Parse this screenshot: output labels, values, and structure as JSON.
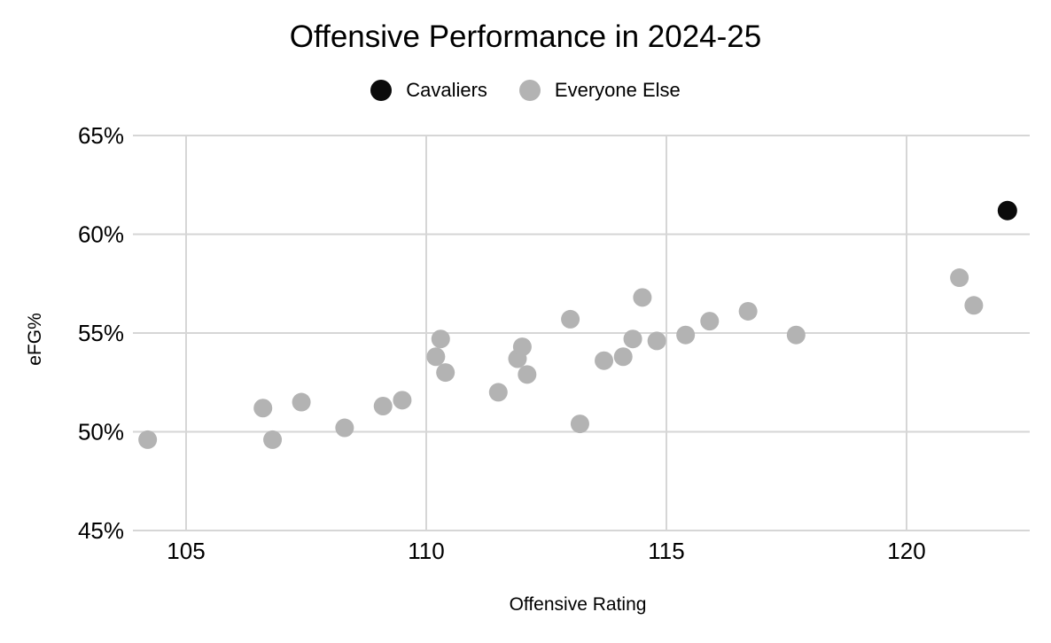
{
  "chart_data": {
    "type": "scatter",
    "title": "Offensive Performance in 2024-25",
    "xlabel": "Offensive Rating",
    "ylabel": "eFG%",
    "xlim": [
      103.9,
      122.6
    ],
    "ylim": [
      45,
      65
    ],
    "x_ticks": [
      105,
      110,
      115,
      120
    ],
    "x_tick_labels": [
      "105",
      "110",
      "115",
      "120"
    ],
    "y_ticks": [
      45,
      50,
      55,
      60,
      65
    ],
    "y_tick_labels": [
      "45%",
      "50%",
      "55%",
      "60%",
      "65%"
    ],
    "grid": true,
    "grid_color": "#d6d6d6",
    "legend_position": "top-center",
    "series": [
      {
        "name": "Cavaliers",
        "color": "#0b0b0b",
        "points": [
          [
            122.1,
            61.2
          ]
        ]
      },
      {
        "name": "Everyone Else",
        "color": "#b3b3b3",
        "points": [
          [
            104.2,
            49.6
          ],
          [
            106.6,
            51.2
          ],
          [
            106.8,
            49.6
          ],
          [
            107.4,
            51.5
          ],
          [
            108.3,
            50.2
          ],
          [
            109.1,
            51.3
          ],
          [
            109.5,
            51.6
          ],
          [
            110.2,
            53.8
          ],
          [
            110.3,
            54.7
          ],
          [
            110.4,
            53.0
          ],
          [
            111.5,
            52.0
          ],
          [
            111.9,
            53.7
          ],
          [
            112.0,
            54.3
          ],
          [
            112.1,
            52.9
          ],
          [
            113.0,
            55.7
          ],
          [
            113.2,
            50.4
          ],
          [
            113.7,
            53.6
          ],
          [
            114.1,
            53.8
          ],
          [
            114.3,
            54.7
          ],
          [
            114.5,
            56.8
          ],
          [
            114.8,
            54.6
          ],
          [
            115.4,
            54.9
          ],
          [
            115.9,
            55.6
          ],
          [
            116.7,
            56.1
          ],
          [
            117.7,
            54.9
          ],
          [
            121.1,
            57.8
          ],
          [
            121.4,
            56.4
          ]
        ]
      }
    ]
  }
}
